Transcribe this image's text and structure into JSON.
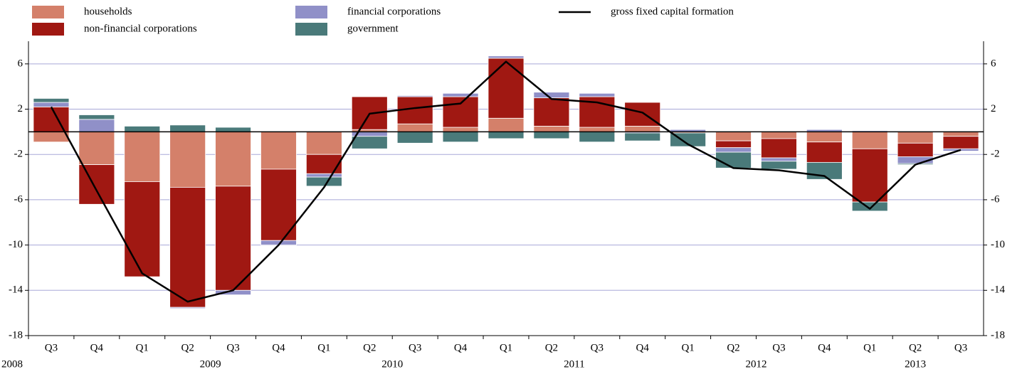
{
  "chart_data": {
    "type": "bar",
    "stacked": true,
    "categories": [
      "Q3",
      "Q4",
      "Q1",
      "Q2",
      "Q3",
      "Q4",
      "Q1",
      "Q2",
      "Q3",
      "Q4",
      "Q1",
      "Q2",
      "Q3",
      "Q4",
      "Q1",
      "Q2",
      "Q3",
      "Q4",
      "Q1",
      "Q2",
      "Q3"
    ],
    "category_groups": [
      "2008",
      "2009",
      "2010",
      "2011",
      "2012",
      "2013"
    ],
    "series": [
      {
        "name": "households",
        "color": "#d4806a",
        "values": [
          -0.9,
          -2.9,
          -4.4,
          -4.9,
          -4.8,
          -3.3,
          -2.0,
          0.2,
          0.7,
          0.4,
          1.2,
          0.5,
          0.4,
          0.5,
          -0.1,
          -0.8,
          -0.6,
          -0.9,
          -1.5,
          -1.0,
          -0.4
        ]
      },
      {
        "name": "non-financial corporations",
        "color": "#a01812",
        "values": [
          2.2,
          -3.5,
          -8.4,
          -10.6,
          -9.2,
          -6.3,
          -1.7,
          2.9,
          2.4,
          2.7,
          5.3,
          2.5,
          2.7,
          2.1,
          0,
          -0.6,
          -1.7,
          -1.8,
          -4.7,
          -1.2,
          -1.1
        ]
      },
      {
        "name": "financial corporations",
        "color": "#9090c8",
        "values": [
          0.4,
          1.1,
          0,
          -0.1,
          -0.4,
          -0.4,
          -0.3,
          -0.4,
          0.1,
          0.3,
          0.2,
          0.5,
          0.3,
          -0.1,
          0.2,
          -0.4,
          -0.3,
          0.2,
          0.1,
          -0.6,
          -0.2
        ]
      },
      {
        "name": "government",
        "color": "#4a7a7a",
        "values": [
          0.35,
          0.4,
          0.5,
          0.6,
          0.4,
          0,
          -0.8,
          -1.1,
          -1.0,
          -0.9,
          -0.6,
          -0.6,
          -0.9,
          -0.7,
          -1.2,
          -1.4,
          -0.7,
          -1.5,
          -0.8,
          -0.1,
          0
        ]
      },
      {
        "name": "gross fixed capital formation",
        "type": "line",
        "color": "#000000",
        "values": [
          2.2,
          -5.2,
          -12.5,
          -15.0,
          -14.0,
          -10.0,
          -4.9,
          1.6,
          2.1,
          2.5,
          6.2,
          2.9,
          2.6,
          1.7,
          -1.1,
          -3.2,
          -3.4,
          -3.9,
          -6.8,
          -2.9,
          -1.6
        ]
      }
    ],
    "ylim": [
      -18,
      8
    ],
    "yticks": [
      6,
      2,
      -2,
      -6,
      -10,
      -14,
      -18
    ],
    "y2lim": [
      -18,
      8
    ],
    "y2ticks": [
      6,
      2,
      -2,
      -6,
      -10,
      -14,
      -18
    ],
    "grid": true,
    "grid_color": "#a8a8d8"
  }
}
